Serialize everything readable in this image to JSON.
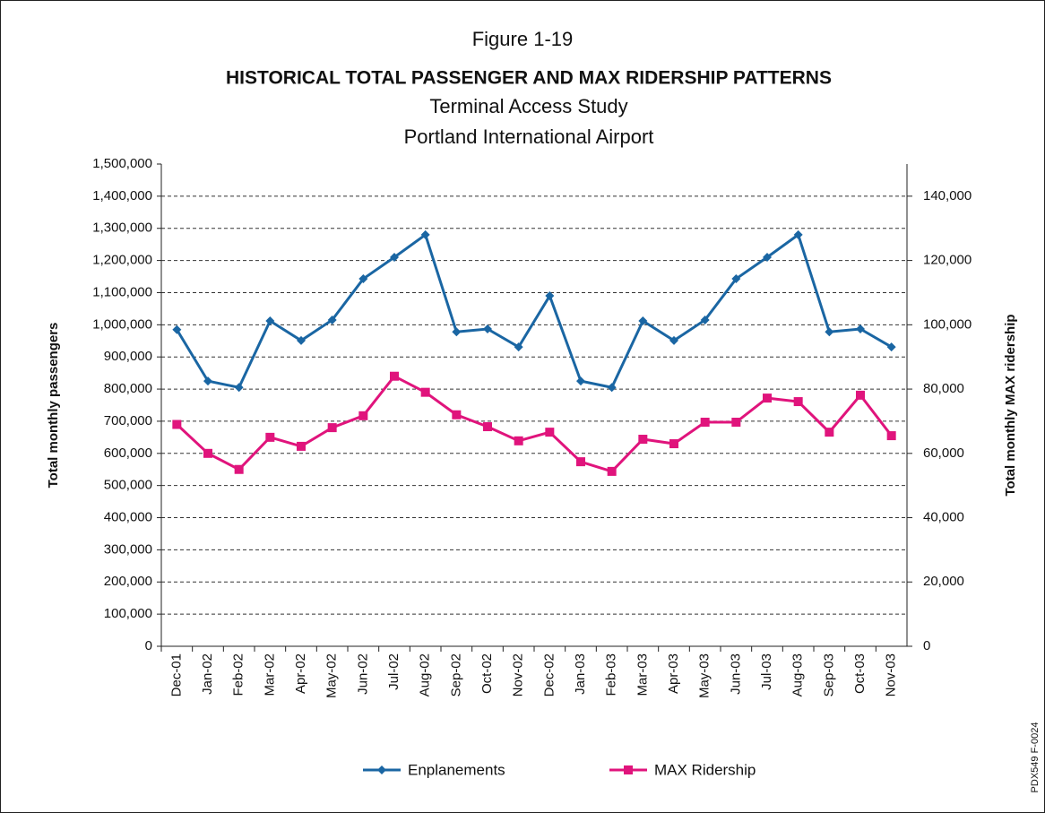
{
  "chart_data": {
    "type": "line",
    "figure_label": "Figure 1-19",
    "title": "HISTORICAL TOTAL PASSENGER AND MAX RIDERSHIP PATTERNS",
    "subtitle": [
      "Terminal Access Study",
      "Portland International Airport"
    ],
    "y_label": "Total monthly passengers",
    "y2_label": "Total monthly MAX ridership",
    "code": "PDX549 F-0024",
    "categories": [
      "Dec-01",
      "Jan-02",
      "Feb-02",
      "Mar-02",
      "Apr-02",
      "May-02",
      "Jun-02",
      "Jul-02",
      "Aug-02",
      "Sep-02",
      "Oct-02",
      "Nov-02",
      "Dec-02",
      "Jan-03",
      "Feb-03",
      "Mar-03",
      "Apr-03",
      "May-03",
      "Jun-03",
      "Jul-03",
      "Aug-03",
      "Sep-03",
      "Oct-03",
      "Nov-03"
    ],
    "series": [
      {
        "name": "Enplanements",
        "color": "#1a66a3",
        "marker": "diamond",
        "values": [
          985000,
          825000,
          805000,
          1012000,
          951000,
          1015000,
          1143000,
          1210000,
          1280000,
          978000,
          987000,
          931000,
          1090000,
          825000,
          805000,
          1012000,
          951000,
          1015000,
          1143000,
          1210000,
          1280000,
          978000,
          987000,
          931000
        ]
      },
      {
        "name": "MAX Ridership",
        "color": "#e0147c",
        "marker": "square",
        "axis": "y2",
        "values": [
          69000,
          60000,
          55000,
          65000,
          62200,
          68000,
          71700,
          84000,
          79000,
          72000,
          68300,
          63900,
          66600,
          57400,
          54400,
          64400,
          63000,
          69700,
          69700,
          77200,
          76100,
          66600,
          78100,
          65500
        ]
      }
    ],
    "ylim": [
      0,
      1500000
    ],
    "yticks": [
      0,
      {
        "value": 100000,
        "label": "100,000"
      },
      {
        "value": 200000,
        "label": "200,000"
      },
      {
        "value": 300000,
        "label": "300,000"
      },
      {
        "value": 400000,
        "label": "400,000"
      },
      {
        "value": 500000,
        "label": "500,000"
      },
      {
        "value": 600000,
        "label": "600,000"
      },
      {
        "value": 700000,
        "label": "700,000"
      },
      {
        "value": 800000,
        "label": "800,000"
      },
      {
        "value": 900000,
        "label": "900,000"
      },
      {
        "value": 1000000,
        "label": "1,000,000"
      },
      {
        "value": 1100000,
        "label": "1,100,000"
      },
      {
        "value": 1200000,
        "label": "1,200,000"
      },
      {
        "value": 1300000,
        "label": "1,300,000"
      },
      {
        "value": 1400000,
        "label": "1,400,000"
      },
      {
        "value": 1500000,
        "label": "1,500,000"
      }
    ],
    "y2lim": [
      0,
      150000
    ],
    "y2ticks": [
      0,
      {
        "value": 20000,
        "label": "20,000"
      },
      {
        "value": 40000,
        "label": "40,000"
      },
      {
        "value": 60000,
        "label": "60,000"
      },
      {
        "value": 80000,
        "label": "80,000"
      },
      {
        "value": 100000,
        "label": "100,000"
      },
      {
        "value": 120000,
        "label": "120,000"
      },
      {
        "value": 140000,
        "label": "140,000"
      }
    ],
    "grid": true,
    "legend": "bottom"
  }
}
